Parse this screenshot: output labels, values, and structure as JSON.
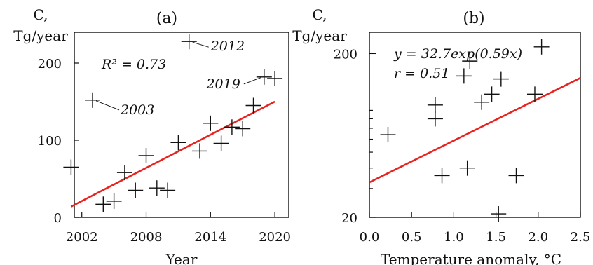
{
  "chart_data": [
    {
      "type": "scatter",
      "title": "(a)",
      "xlabel": "Year",
      "ylabel_line1": "C,",
      "ylabel_line2": "Tg/year",
      "xlim": [
        2001.3,
        2021.3
      ],
      "ylim": [
        0,
        240
      ],
      "xticks": [
        2002,
        2008,
        2014,
        2020
      ],
      "yticks": [
        0,
        100,
        200
      ],
      "grid": false,
      "points": [
        {
          "x": 2001,
          "y": 65
        },
        {
          "x": 2003,
          "y": 152
        },
        {
          "x": 2004,
          "y": 17
        },
        {
          "x": 2005,
          "y": 21
        },
        {
          "x": 2006,
          "y": 58
        },
        {
          "x": 2007,
          "y": 35
        },
        {
          "x": 2008,
          "y": 80
        },
        {
          "x": 2009,
          "y": 38
        },
        {
          "x": 2010,
          "y": 35
        },
        {
          "x": 2011,
          "y": 97
        },
        {
          "x": 2012,
          "y": 228
        },
        {
          "x": 2013,
          "y": 86
        },
        {
          "x": 2014,
          "y": 122
        },
        {
          "x": 2015,
          "y": 96
        },
        {
          "x": 2016,
          "y": 117
        },
        {
          "x": 2017,
          "y": 115
        },
        {
          "x": 2018,
          "y": 145
        },
        {
          "x": 2019,
          "y": 182
        },
        {
          "x": 2020,
          "y": 180
        }
      ],
      "fit": {
        "x": [
          2001,
          2020
        ],
        "y": [
          14,
          150
        ]
      },
      "annotations": [
        {
          "text": "R² = 0.73"
        },
        {
          "text": "2003",
          "x": 2003,
          "y": 152
        },
        {
          "text": "2012",
          "x": 2012,
          "y": 228
        },
        {
          "text": "2019",
          "x": 2019,
          "y": 182
        }
      ]
    },
    {
      "type": "scatter",
      "title": "(b)",
      "xlabel": "Temperature anomaly, °C",
      "ylabel_line1": "C,",
      "ylabel_line2": "Tg/year",
      "yscale": "log",
      "xlim": [
        0,
        2.5
      ],
      "ylim": [
        20,
        270
      ],
      "xticks": [
        0.0,
        0.5,
        1.0,
        1.5,
        2.0,
        2.5
      ],
      "yticks": [
        20,
        200
      ],
      "grid": false,
      "points": [
        {
          "x": 0.22,
          "y": 64
        },
        {
          "x": 0.78,
          "y": 97
        },
        {
          "x": 0.78,
          "y": 80
        },
        {
          "x": 0.86,
          "y": 36
        },
        {
          "x": 1.12,
          "y": 146
        },
        {
          "x": 1.16,
          "y": 40
        },
        {
          "x": 1.19,
          "y": 180
        },
        {
          "x": 1.33,
          "y": 101
        },
        {
          "x": 1.45,
          "y": 113
        },
        {
          "x": 1.53,
          "y": 21
        },
        {
          "x": 1.56,
          "y": 140
        },
        {
          "x": 1.74,
          "y": 36
        },
        {
          "x": 1.96,
          "y": 113
        },
        {
          "x": 2.04,
          "y": 220
        }
      ],
      "fit": {
        "x": [
          0,
          2.5
        ],
        "y": [
          32.7,
          142
        ]
      },
      "annotations": [
        {
          "text": "y = 32.7exp(0.59x)"
        },
        {
          "text": "r = 0.51"
        }
      ]
    }
  ]
}
